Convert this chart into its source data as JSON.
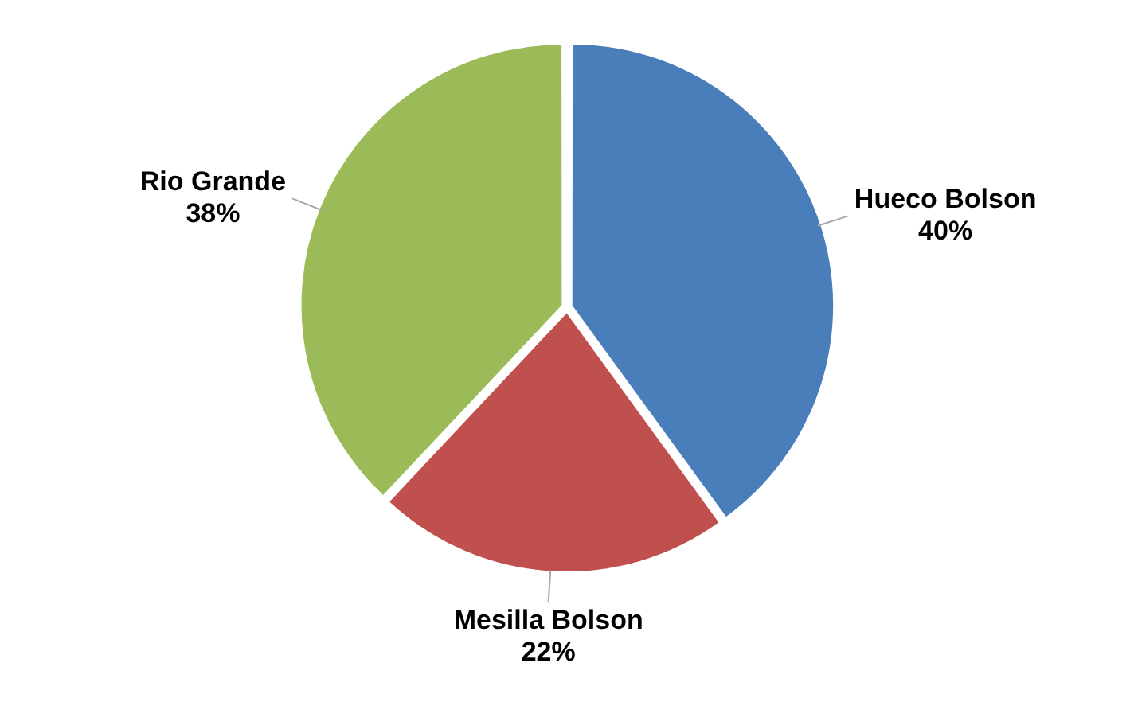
{
  "chart_data": {
    "type": "pie",
    "categories": [
      "Hueco Bolson",
      "Mesilla Bolson",
      "Rio Grande"
    ],
    "values": [
      40,
      22,
      38
    ],
    "value_labels": [
      "40%",
      "22%",
      "38%"
    ],
    "colors": [
      "#4a7ebb",
      "#c0504d",
      "#9bbb59"
    ],
    "legend": false
  }
}
